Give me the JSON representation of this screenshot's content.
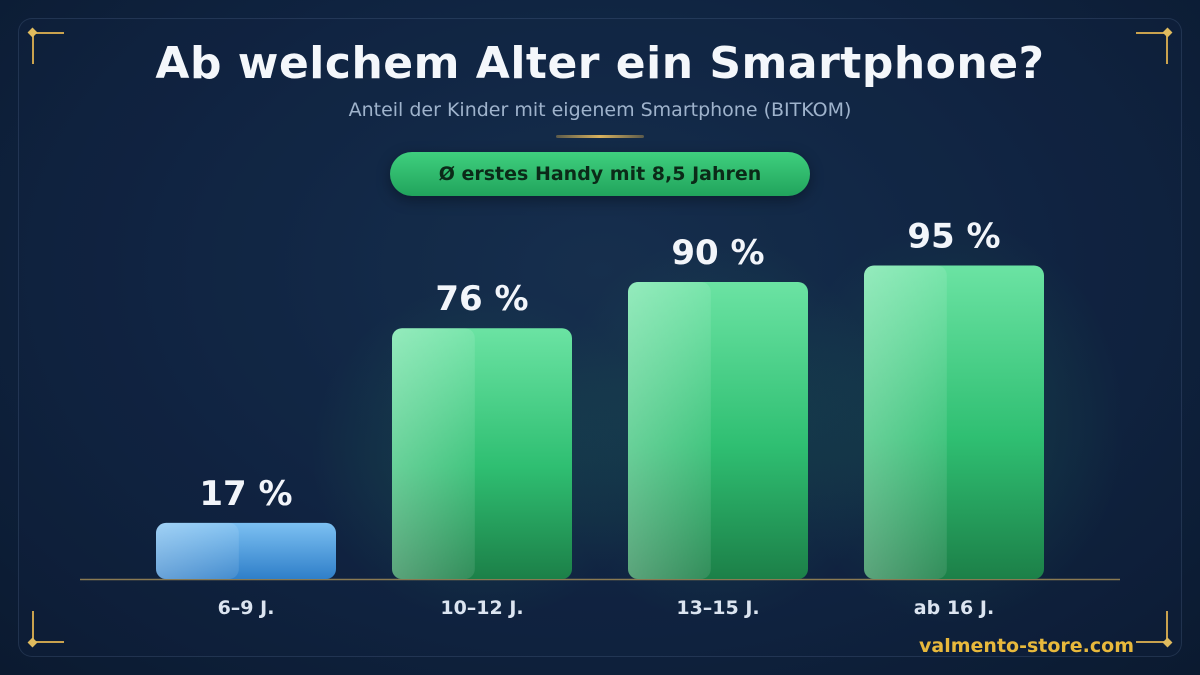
{
  "chart_data": {
    "type": "bar",
    "title": "Ab welchem Alter ein Smartphone?",
    "subtitle": "Anteil der Kinder mit eigenem Smartphone (BITKOM)",
    "annotation": "Ø erstes Handy mit 8,5 Jahren",
    "categories": [
      "6–9 J.",
      "10–12 J.",
      "13–15 J.",
      "ab 16 J."
    ],
    "values": [
      17,
      76,
      90,
      95
    ],
    "value_labels": [
      "17 %",
      "76 %",
      "90 %",
      "95 %"
    ],
    "unit": "%",
    "ylim": [
      0,
      100
    ],
    "grid": false,
    "legend": "none",
    "colors": {
      "highlight_bar": "#3a8fd8",
      "bar": "#2fbf72",
      "accent_gold": "#c9a24e"
    }
  },
  "footer": "valmento-store.com"
}
